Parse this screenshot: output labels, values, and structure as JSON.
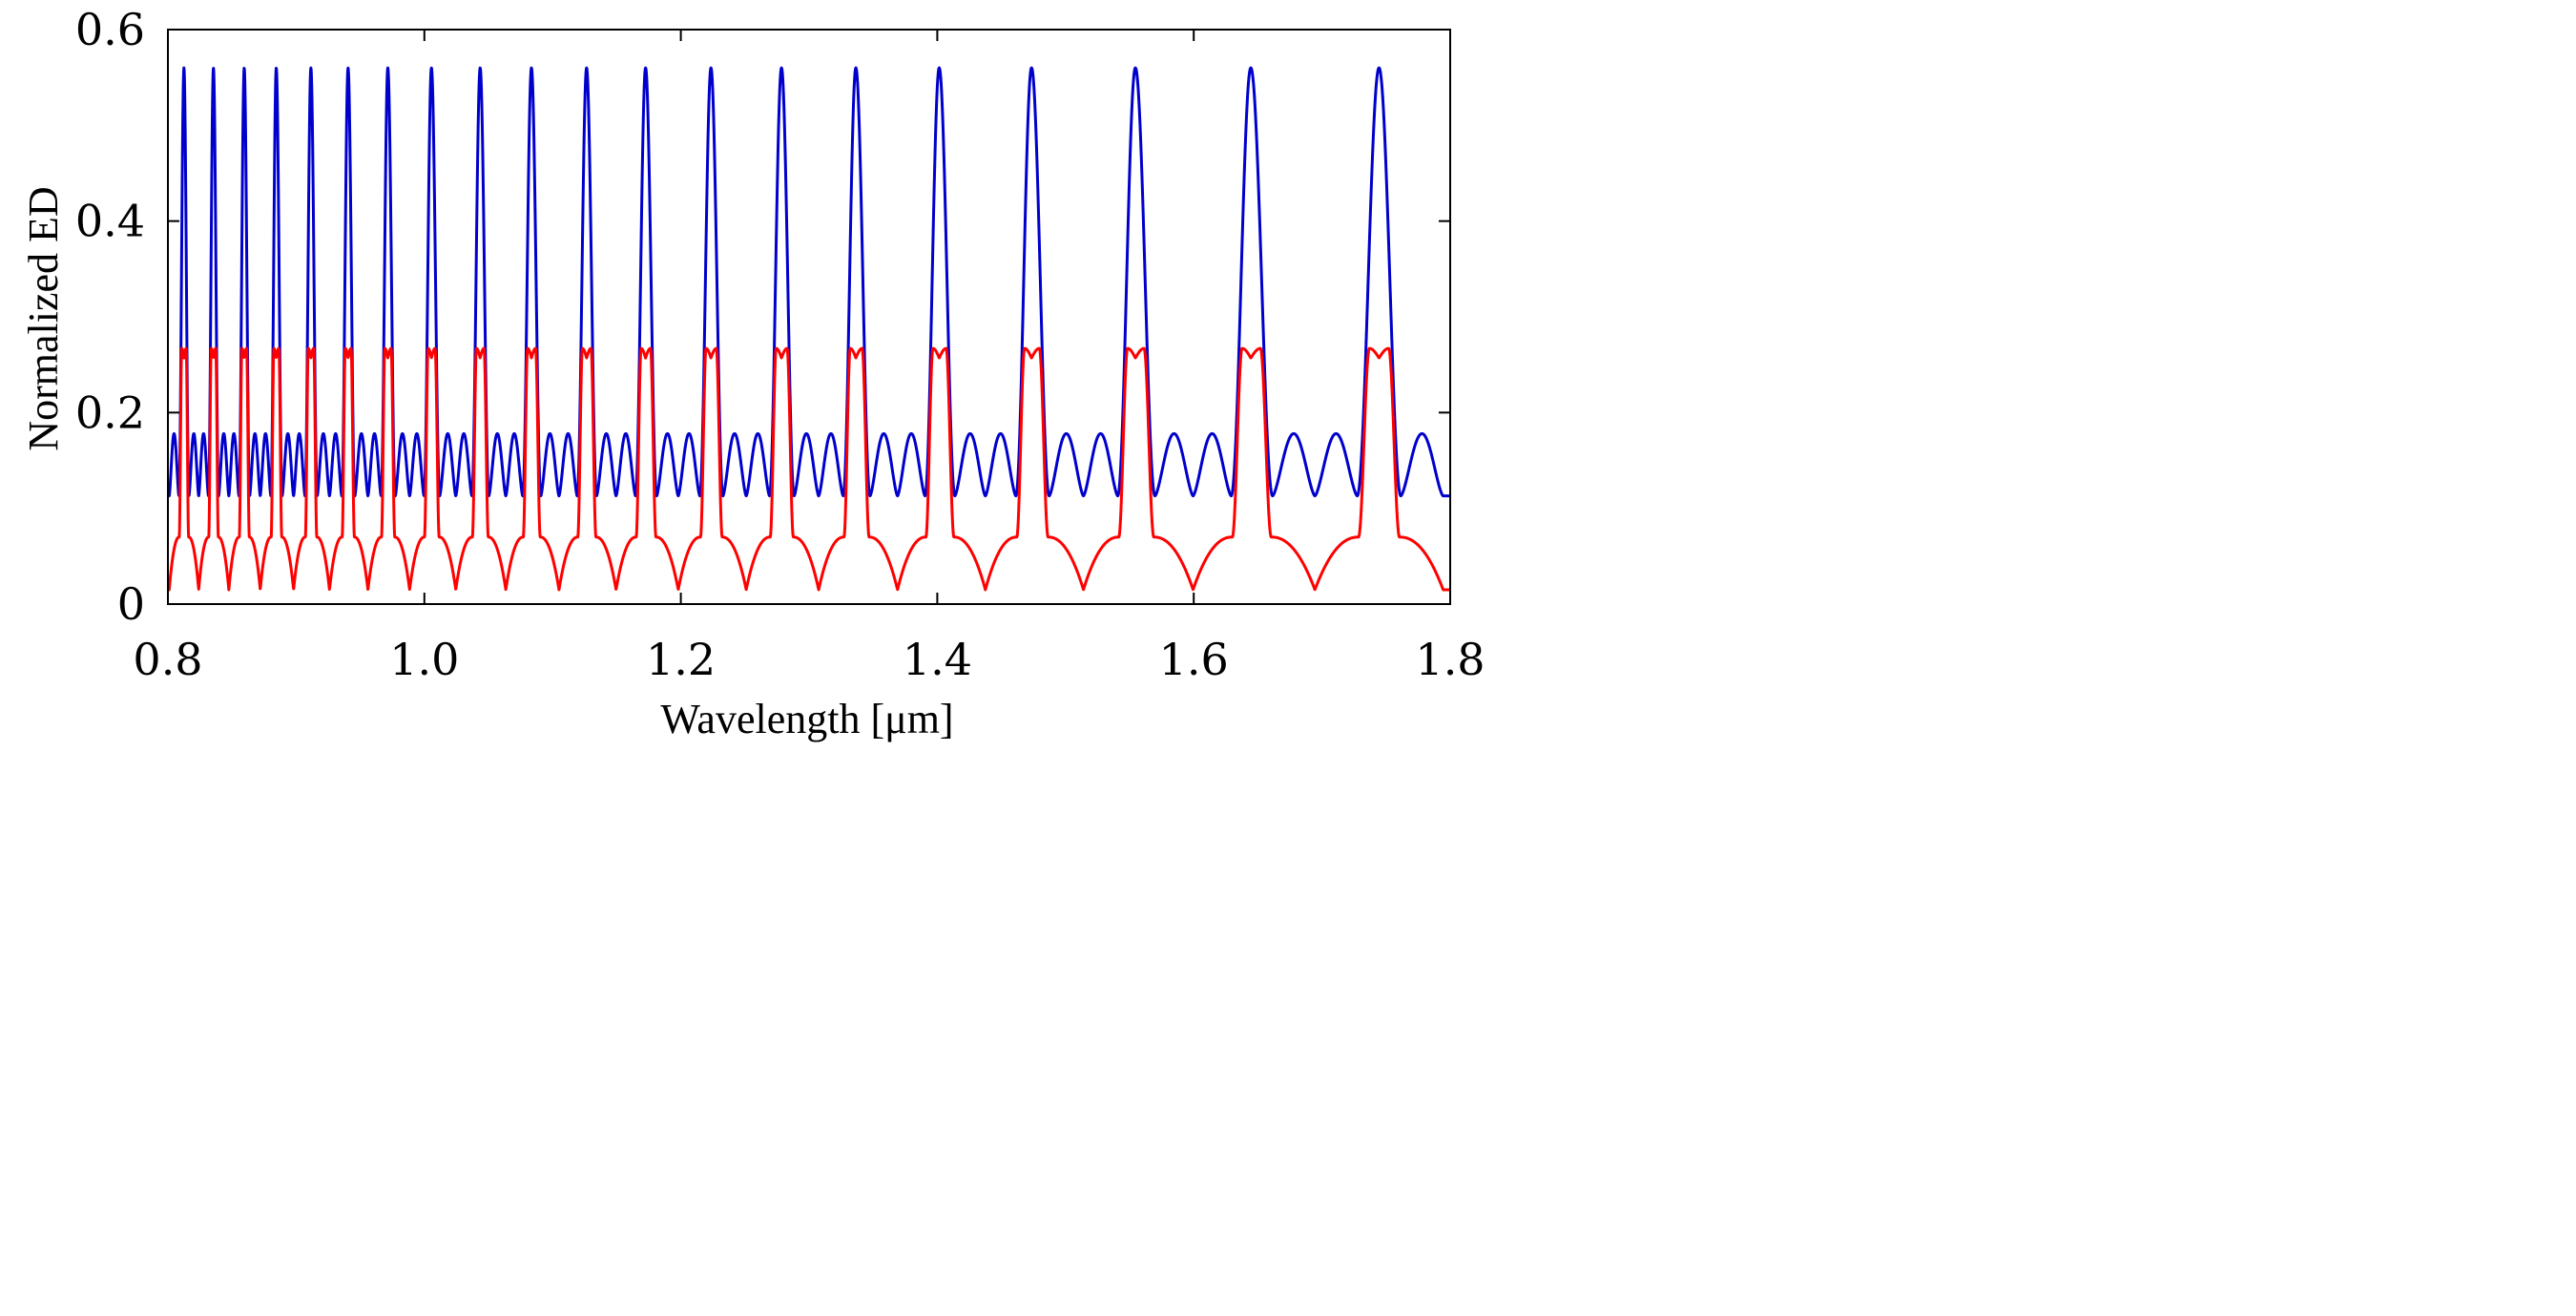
{
  "chart_data": {
    "type": "line",
    "title": "",
    "xlabel": "Wavelength [μm]",
    "ylabel": "Normalized ED",
    "xlim": [
      0.8,
      1.8
    ],
    "ylim": [
      0,
      0.6
    ],
    "xticks": [
      0.8,
      1.0,
      1.2,
      1.4,
      1.6,
      1.8
    ],
    "xtick_labels": [
      "0.8",
      "1.0",
      "1.2",
      "1.4",
      "1.6",
      "1.8"
    ],
    "yticks": [
      0,
      0.2,
      0.4,
      0.6
    ],
    "ytick_labels": [
      "0",
      "0.2",
      "0.4",
      "0.6"
    ],
    "grid": false,
    "legend": "none",
    "peak_centers_um": [
      0.8125,
      0.8355,
      0.8595,
      0.8845,
      0.9115,
      0.9405,
      0.9715,
      1.0055,
      1.0435,
      1.0835,
      1.1265,
      1.1725,
      1.2235,
      1.2785,
      1.3365,
      1.4015,
      1.4735,
      1.5545,
      1.6445,
      1.7445
    ],
    "series": [
      {
        "name": "blue-curve",
        "color": "#0000cc",
        "peak_value": 0.56,
        "side_lobe_value": 0.178,
        "min_value": 0.113,
        "description_values": [
          0.56,
          0.178,
          0.113
        ]
      },
      {
        "name": "red-curve",
        "color": "#ff0000",
        "plateau_value": 0.267,
        "plateau_dip_value": 0.257,
        "min_value": 0.015,
        "shoulder_value": 0.07,
        "description_values": [
          0.267,
          0.015
        ]
      }
    ]
  }
}
